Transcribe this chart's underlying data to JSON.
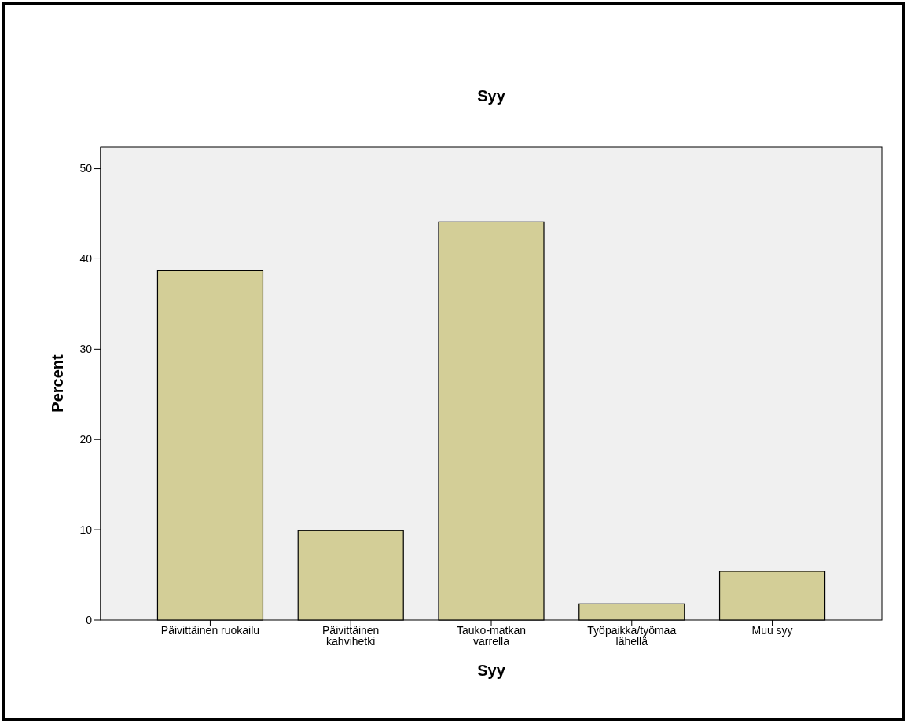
{
  "chart_data": {
    "type": "bar",
    "title": "Syy",
    "xlabel": "Syy",
    "ylabel": "Percent",
    "categories": [
      "Päivittäinen ruokailu",
      "Päivittäinen\nkahvihetki",
      "Tauko-matkan\nvarrella",
      "Työpaikka/työmaa\nlähellä",
      "Muu syy"
    ],
    "values": [
      38.7,
      9.9,
      44.1,
      1.8,
      5.4
    ],
    "color": "#d3ce97",
    "ylim": [
      0,
      52.4
    ],
    "yticks": [
      0,
      10,
      20,
      30,
      40,
      50
    ],
    "grid": false
  }
}
